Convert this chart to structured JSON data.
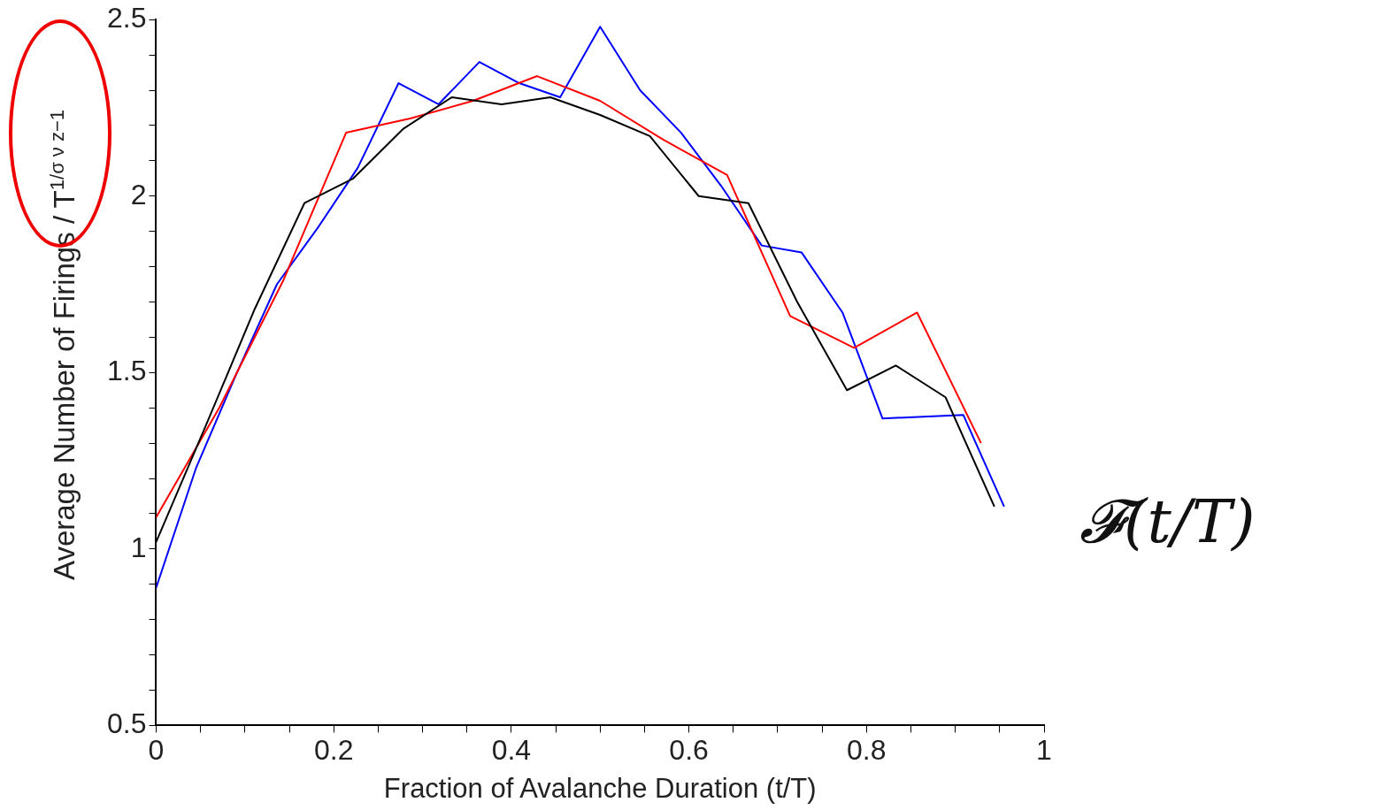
{
  "chart_data": {
    "type": "line",
    "xlabel": "Fraction of Avalanche Duration (t/T)",
    "ylabel": "Average Number of Firings / T$^{1/σ ν z−1}$",
    "annotations": [
      "𝓕(t/T)"
    ],
    "series": [
      {
        "color": "#000000",
        "x": [
          0,
          0.056,
          0.111,
          0.167,
          0.222,
          0.278,
          0.333,
          0.389,
          0.444,
          0.5,
          0.556,
          0.611,
          0.667,
          0.722,
          0.778,
          0.833,
          0.889,
          0.944
        ],
        "values": [
          1.02,
          1.35,
          1.68,
          1.98,
          2.05,
          2.19,
          2.28,
          2.26,
          2.28,
          2.23,
          2.17,
          2.0,
          1.98,
          1.7,
          1.45,
          1.52,
          1.43,
          1.12
        ]
      },
      {
        "color": "#ff0000",
        "x": [
          0,
          0.071,
          0.143,
          0.214,
          0.286,
          0.357,
          0.429,
          0.5,
          0.571,
          0.643,
          0.714,
          0.786,
          0.857,
          0.929
        ],
        "values": [
          1.09,
          1.4,
          1.76,
          2.18,
          2.22,
          2.27,
          2.34,
          2.27,
          2.16,
          2.06,
          1.66,
          1.57,
          1.67,
          1.3
        ]
      },
      {
        "color": "#0000ff",
        "x": [
          0,
          0.045,
          0.091,
          0.136,
          0.182,
          0.227,
          0.273,
          0.318,
          0.364,
          0.409,
          0.455,
          0.5,
          0.545,
          0.591,
          0.636,
          0.682,
          0.727,
          0.773,
          0.818,
          0.864,
          0.909,
          0.955
        ],
        "values": [
          0.89,
          1.23,
          1.5,
          1.75,
          1.91,
          2.08,
          2.32,
          2.26,
          2.38,
          2.32,
          2.28,
          2.48,
          2.3,
          2.18,
          2.03,
          1.86,
          1.84,
          1.67,
          1.37,
          1.375,
          1.38,
          1.12
        ]
      }
    ],
    "xlim": [
      0,
      1
    ],
    "xticks": [
      0,
      {
        "value": 0.05,
        "label": null
      },
      {
        "value": 0.1,
        "label": null
      },
      {
        "value": 0.15,
        "label": null
      },
      0.2,
      {
        "value": 0.25,
        "label": null
      },
      {
        "value": 0.3,
        "label": null
      },
      {
        "value": 0.35,
        "label": null
      },
      0.4,
      {
        "value": 0.45,
        "label": null
      },
      {
        "value": 0.5,
        "label": null
      },
      {
        "value": 0.55,
        "label": null
      },
      0.6,
      {
        "value": 0.65,
        "label": null
      },
      {
        "value": 0.7,
        "label": null
      },
      {
        "value": 0.75,
        "label": null
      },
      0.8,
      {
        "value": 0.85,
        "label": null
      },
      {
        "value": 0.9,
        "label": null
      },
      {
        "value": 0.95,
        "label": null
      },
      1
    ],
    "ylim": [
      0.5,
      2.5
    ],
    "yticks": [
      0.5,
      {
        "value": 0.6,
        "label": null
      },
      {
        "value": 0.7,
        "label": null
      },
      {
        "value": 0.8,
        "label": null
      },
      {
        "value": 0.9,
        "label": null
      },
      1,
      {
        "value": 1.1,
        "label": null
      },
      {
        "value": 1.2,
        "label": null
      },
      {
        "value": 1.3,
        "label": null
      },
      {
        "value": 1.4,
        "label": null
      },
      1.5,
      {
        "value": 1.6,
        "label": null
      },
      {
        "value": 1.7,
        "label": null
      },
      {
        "value": 1.8,
        "label": null
      },
      {
        "value": 1.9,
        "label": null
      },
      2,
      {
        "value": 2.1,
        "label": null
      },
      {
        "value": 2.2,
        "label": null
      },
      {
        "value": 2.3,
        "label": null
      },
      {
        "value": 2.4,
        "label": null
      },
      2.5
    ],
    "grid": false,
    "legend": false,
    "marker": "none",
    "line_style": "solid"
  }
}
